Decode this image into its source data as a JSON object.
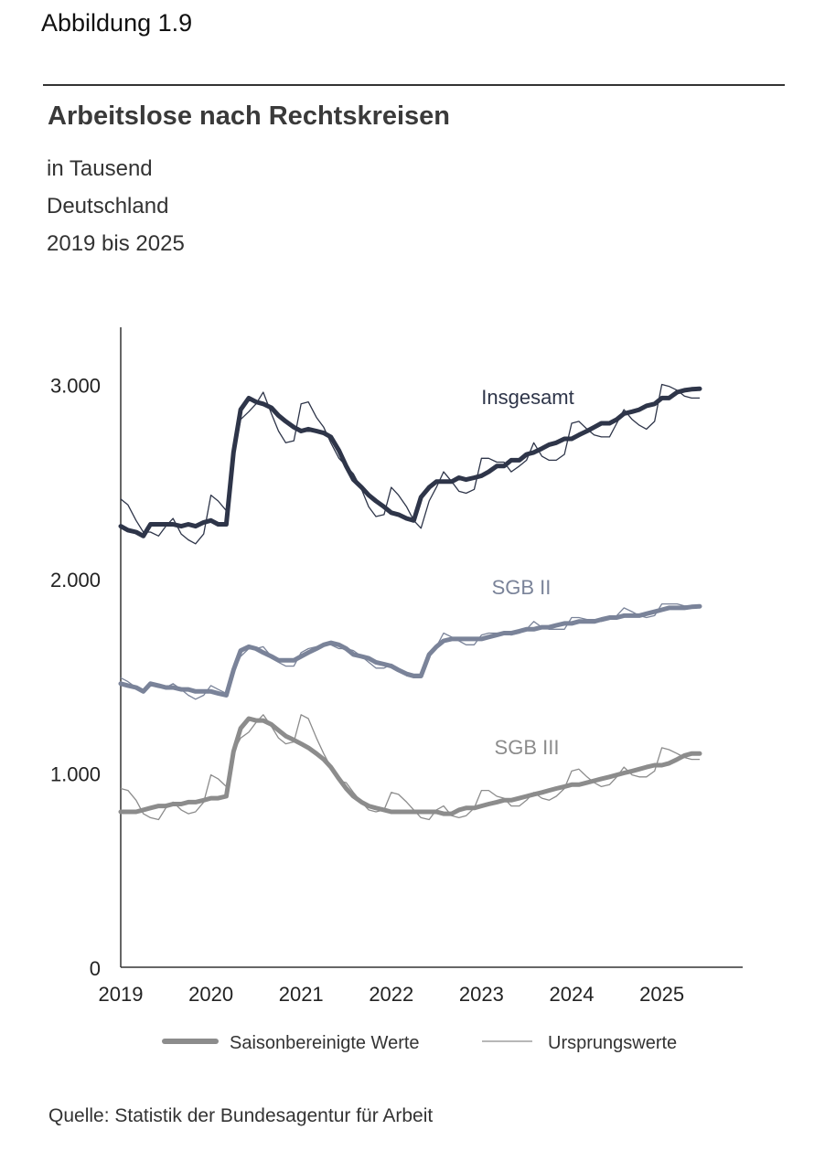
{
  "figure_label": "Abbildung 1.9",
  "source": "Quelle: Statistik der Bundesagentur für Arbeit",
  "colors": {
    "insgesamt": "#2e3549",
    "sgb2": "#7a8399",
    "sgb3": "#8c8c8c",
    "axis": "#333333"
  },
  "chart_data": {
    "type": "line",
    "title": "Arbeitslose nach Rechtskreisen",
    "subtitle": [
      "in Tausend",
      "Deutschland",
      "2019 bis 2025"
    ],
    "xlabel": "",
    "ylabel": "",
    "xlim": [
      2019.0,
      2025.85
    ],
    "ylim": [
      0,
      3000
    ],
    "x_ticks": [
      "2019",
      "2020",
      "2021",
      "2022",
      "2023",
      "2024",
      "2025"
    ],
    "y_ticks": [
      "0",
      "1.000",
      "2.000",
      "3.000"
    ],
    "y_tick_values": [
      0,
      1000,
      2000,
      3000
    ],
    "grid": false,
    "legend": {
      "placement": "bottom",
      "entries": [
        "Saisonbereinigte Werte",
        "Ursprungswerte"
      ]
    },
    "series": [
      {
        "name": "Insgesamt",
        "seasonally_adjusted": {
          "x": [
            2019.0,
            2019.08,
            2019.17,
            2019.25,
            2019.33,
            2019.42,
            2019.5,
            2019.58,
            2019.67,
            2019.75,
            2019.83,
            2019.92,
            2020.0,
            2020.08,
            2020.17,
            2020.25,
            2020.33,
            2020.42,
            2020.5,
            2020.58,
            2020.67,
            2020.75,
            2020.83,
            2020.92,
            2021.0,
            2021.08,
            2021.17,
            2021.25,
            2021.33,
            2021.42,
            2021.5,
            2021.58,
            2021.67,
            2021.75,
            2021.83,
            2021.92,
            2022.0,
            2022.08,
            2022.17,
            2022.25,
            2022.33,
            2022.42,
            2022.5,
            2022.58,
            2022.67,
            2022.75,
            2022.83,
            2022.92,
            2023.0,
            2023.08,
            2023.17,
            2023.25,
            2023.33,
            2023.42,
            2023.5,
            2023.58,
            2023.67,
            2023.75,
            2023.83,
            2023.92,
            2024.0,
            2024.08,
            2024.17,
            2024.25,
            2024.33,
            2024.42,
            2024.5,
            2024.58,
            2024.67,
            2024.75,
            2024.83,
            2024.92,
            2025.0,
            2025.08,
            2025.17,
            2025.25,
            2025.33,
            2025.42
          ],
          "y": [
            2270,
            2250,
            2240,
            2220,
            2280,
            2280,
            2280,
            2280,
            2270,
            2280,
            2270,
            2290,
            2300,
            2280,
            2280,
            2650,
            2870,
            2930,
            2910,
            2900,
            2880,
            2840,
            2810,
            2780,
            2760,
            2770,
            2760,
            2750,
            2730,
            2660,
            2580,
            2510,
            2470,
            2430,
            2400,
            2370,
            2340,
            2330,
            2310,
            2300,
            2420,
            2470,
            2500,
            2500,
            2500,
            2520,
            2510,
            2520,
            2530,
            2550,
            2580,
            2580,
            2610,
            2610,
            2640,
            2650,
            2670,
            2690,
            2700,
            2720,
            2720,
            2740,
            2760,
            2780,
            2800,
            2800,
            2820,
            2850,
            2860,
            2870,
            2890,
            2900,
            2930,
            2930,
            2960,
            2970,
            2975,
            2978
          ]
        },
        "original": {
          "x": [
            2019.0,
            2019.08,
            2019.17,
            2019.25,
            2019.33,
            2019.42,
            2019.5,
            2019.58,
            2019.67,
            2019.75,
            2019.83,
            2019.92,
            2020.0,
            2020.08,
            2020.17,
            2020.25,
            2020.33,
            2020.42,
            2020.5,
            2020.58,
            2020.67,
            2020.75,
            2020.83,
            2020.92,
            2021.0,
            2021.08,
            2021.17,
            2021.25,
            2021.33,
            2021.42,
            2021.5,
            2021.58,
            2021.67,
            2021.75,
            2021.83,
            2021.92,
            2022.0,
            2022.08,
            2022.17,
            2022.25,
            2022.33,
            2022.42,
            2022.5,
            2022.58,
            2022.67,
            2022.75,
            2022.83,
            2022.92,
            2023.0,
            2023.08,
            2023.17,
            2023.25,
            2023.33,
            2023.42,
            2023.5,
            2023.58,
            2023.67,
            2023.75,
            2023.83,
            2023.92,
            2024.0,
            2024.08,
            2024.17,
            2024.25,
            2024.33,
            2024.42,
            2024.5,
            2024.58,
            2024.67,
            2024.75,
            2024.83,
            2024.92,
            2025.0,
            2025.08,
            2025.17,
            2025.25,
            2025.33,
            2025.42
          ],
          "y": [
            2410,
            2380,
            2300,
            2240,
            2240,
            2220,
            2270,
            2310,
            2230,
            2200,
            2180,
            2230,
            2430,
            2400,
            2350,
            2620,
            2820,
            2860,
            2900,
            2960,
            2850,
            2760,
            2700,
            2710,
            2900,
            2910,
            2830,
            2780,
            2700,
            2620,
            2580,
            2540,
            2460,
            2370,
            2320,
            2330,
            2470,
            2430,
            2370,
            2300,
            2260,
            2400,
            2470,
            2550,
            2500,
            2450,
            2440,
            2460,
            2620,
            2620,
            2600,
            2600,
            2550,
            2580,
            2610,
            2700,
            2630,
            2610,
            2610,
            2640,
            2800,
            2810,
            2770,
            2740,
            2730,
            2730,
            2800,
            2870,
            2820,
            2790,
            2770,
            2810,
            3000,
            2990,
            2970,
            2940,
            2930,
            2930
          ]
        }
      },
      {
        "name": "SGB II",
        "seasonally_adjusted": {
          "x": [
            2019.0,
            2019.08,
            2019.17,
            2019.25,
            2019.33,
            2019.42,
            2019.5,
            2019.58,
            2019.67,
            2019.75,
            2019.83,
            2019.92,
            2020.0,
            2020.08,
            2020.17,
            2020.25,
            2020.33,
            2020.42,
            2020.5,
            2020.58,
            2020.67,
            2020.75,
            2020.83,
            2020.92,
            2021.0,
            2021.08,
            2021.17,
            2021.25,
            2021.33,
            2021.42,
            2021.5,
            2021.58,
            2021.67,
            2021.75,
            2021.83,
            2021.92,
            2022.0,
            2022.08,
            2022.17,
            2022.25,
            2022.33,
            2022.42,
            2022.5,
            2022.58,
            2022.67,
            2022.75,
            2022.83,
            2022.92,
            2023.0,
            2023.08,
            2023.17,
            2023.25,
            2023.33,
            2023.42,
            2023.5,
            2023.58,
            2023.67,
            2023.75,
            2023.83,
            2023.92,
            2024.0,
            2024.08,
            2024.17,
            2024.25,
            2024.33,
            2024.42,
            2024.5,
            2024.58,
            2024.67,
            2024.75,
            2024.83,
            2024.92,
            2025.0,
            2025.08,
            2025.17,
            2025.25,
            2025.33,
            2025.42
          ],
          "y": [
            1460,
            1450,
            1440,
            1420,
            1460,
            1450,
            1440,
            1440,
            1430,
            1430,
            1420,
            1420,
            1420,
            1410,
            1400,
            1530,
            1630,
            1650,
            1640,
            1620,
            1600,
            1580,
            1580,
            1580,
            1600,
            1620,
            1640,
            1660,
            1670,
            1660,
            1640,
            1610,
            1600,
            1590,
            1570,
            1560,
            1550,
            1530,
            1510,
            1500,
            1500,
            1610,
            1650,
            1680,
            1690,
            1690,
            1690,
            1690,
            1690,
            1700,
            1710,
            1720,
            1720,
            1730,
            1740,
            1740,
            1750,
            1750,
            1760,
            1770,
            1770,
            1780,
            1780,
            1780,
            1790,
            1800,
            1800,
            1810,
            1810,
            1810,
            1820,
            1830,
            1840,
            1850,
            1850,
            1850,
            1855,
            1858
          ]
        },
        "original": {
          "x": [
            2019.0,
            2019.08,
            2019.17,
            2019.25,
            2019.33,
            2019.42,
            2019.5,
            2019.58,
            2019.67,
            2019.75,
            2019.83,
            2019.92,
            2020.0,
            2020.08,
            2020.17,
            2020.25,
            2020.33,
            2020.42,
            2020.5,
            2020.58,
            2020.67,
            2020.75,
            2020.83,
            2020.92,
            2021.0,
            2021.08,
            2021.17,
            2021.25,
            2021.33,
            2021.42,
            2021.5,
            2021.58,
            2021.67,
            2021.75,
            2021.83,
            2021.92,
            2022.0,
            2022.08,
            2022.17,
            2022.25,
            2022.33,
            2022.42,
            2022.5,
            2022.58,
            2022.67,
            2022.75,
            2022.83,
            2022.92,
            2023.0,
            2023.08,
            2023.17,
            2023.25,
            2023.33,
            2023.42,
            2023.5,
            2023.58,
            2023.67,
            2023.75,
            2023.83,
            2023.92,
            2024.0,
            2024.08,
            2024.17,
            2024.25,
            2024.33,
            2024.42,
            2024.5,
            2024.58,
            2024.67,
            2024.75,
            2024.83,
            2024.92,
            2025.0,
            2025.08,
            2025.17,
            2025.25,
            2025.33,
            2025.42
          ],
          "y": [
            1490,
            1470,
            1440,
            1430,
            1450,
            1440,
            1440,
            1460,
            1430,
            1400,
            1380,
            1400,
            1450,
            1430,
            1410,
            1520,
            1600,
            1640,
            1640,
            1650,
            1600,
            1570,
            1550,
            1550,
            1620,
            1640,
            1650,
            1660,
            1660,
            1640,
            1640,
            1630,
            1600,
            1570,
            1540,
            1540,
            1560,
            1540,
            1500,
            1490,
            1490,
            1600,
            1650,
            1720,
            1700,
            1680,
            1660,
            1660,
            1710,
            1720,
            1720,
            1720,
            1710,
            1720,
            1740,
            1780,
            1750,
            1740,
            1740,
            1740,
            1800,
            1800,
            1790,
            1790,
            1780,
            1790,
            1810,
            1850,
            1830,
            1810,
            1800,
            1810,
            1870,
            1870,
            1870,
            1860,
            1860,
            1860
          ]
        }
      },
      {
        "name": "SGB III",
        "seasonally_adjusted": {
          "x": [
            2019.0,
            2019.08,
            2019.17,
            2019.25,
            2019.33,
            2019.42,
            2019.5,
            2019.58,
            2019.67,
            2019.75,
            2019.83,
            2019.92,
            2020.0,
            2020.08,
            2020.17,
            2020.25,
            2020.33,
            2020.42,
            2020.5,
            2020.58,
            2020.67,
            2020.75,
            2020.83,
            2020.92,
            2021.0,
            2021.08,
            2021.17,
            2021.25,
            2021.33,
            2021.42,
            2021.5,
            2021.58,
            2021.67,
            2021.75,
            2021.83,
            2021.92,
            2022.0,
            2022.08,
            2022.17,
            2022.25,
            2022.33,
            2022.42,
            2022.5,
            2022.58,
            2022.67,
            2022.75,
            2022.83,
            2022.92,
            2023.0,
            2023.08,
            2023.17,
            2023.25,
            2023.33,
            2023.42,
            2023.5,
            2023.58,
            2023.67,
            2023.75,
            2023.83,
            2023.92,
            2024.0,
            2024.08,
            2024.17,
            2024.25,
            2024.33,
            2024.42,
            2024.5,
            2024.58,
            2024.67,
            2024.75,
            2024.83,
            2024.92,
            2025.0,
            2025.08,
            2025.17,
            2025.25,
            2025.33,
            2025.42
          ],
          "y": [
            800,
            800,
            800,
            810,
            820,
            830,
            830,
            840,
            840,
            850,
            850,
            860,
            870,
            870,
            880,
            1110,
            1230,
            1280,
            1270,
            1270,
            1250,
            1220,
            1190,
            1170,
            1150,
            1130,
            1100,
            1070,
            1030,
            970,
            920,
            880,
            850,
            830,
            820,
            810,
            800,
            800,
            800,
            800,
            800,
            800,
            800,
            790,
            790,
            810,
            820,
            820,
            830,
            840,
            850,
            860,
            860,
            870,
            880,
            890,
            900,
            910,
            920,
            930,
            940,
            940,
            950,
            960,
            970,
            980,
            990,
            1000,
            1010,
            1020,
            1030,
            1040,
            1040,
            1050,
            1070,
            1090,
            1100,
            1100
          ]
        },
        "original": {
          "x": [
            2019.0,
            2019.08,
            2019.17,
            2019.25,
            2019.33,
            2019.42,
            2019.5,
            2019.58,
            2019.67,
            2019.75,
            2019.83,
            2019.92,
            2020.0,
            2020.08,
            2020.17,
            2020.25,
            2020.33,
            2020.42,
            2020.5,
            2020.58,
            2020.67,
            2020.75,
            2020.83,
            2020.92,
            2021.0,
            2021.08,
            2021.17,
            2021.25,
            2021.33,
            2021.42,
            2021.5,
            2021.58,
            2021.67,
            2021.75,
            2021.83,
            2021.92,
            2022.0,
            2022.08,
            2022.17,
            2022.25,
            2022.33,
            2022.42,
            2022.5,
            2022.58,
            2022.67,
            2022.75,
            2022.83,
            2022.92,
            2023.0,
            2023.08,
            2023.17,
            2023.25,
            2023.33,
            2023.42,
            2023.5,
            2023.58,
            2023.67,
            2023.75,
            2023.83,
            2023.92,
            2024.0,
            2024.08,
            2024.17,
            2024.25,
            2024.33,
            2024.42,
            2024.5,
            2024.58,
            2024.67,
            2024.75,
            2024.83,
            2024.92,
            2025.0,
            2025.08,
            2025.17,
            2025.25,
            2025.33,
            2025.42
          ],
          "y": [
            920,
            910,
            860,
            790,
            770,
            760,
            820,
            850,
            810,
            790,
            800,
            850,
            990,
            970,
            930,
            1110,
            1180,
            1210,
            1260,
            1300,
            1240,
            1180,
            1150,
            1160,
            1300,
            1280,
            1180,
            1100,
            1030,
            960,
            950,
            900,
            850,
            810,
            800,
            810,
            900,
            890,
            850,
            810,
            770,
            760,
            810,
            830,
            780,
            770,
            780,
            820,
            910,
            910,
            880,
            870,
            830,
            830,
            860,
            900,
            870,
            860,
            880,
            920,
            1010,
            1020,
            980,
            950,
            930,
            940,
            980,
            1030,
            990,
            980,
            980,
            1010,
            1130,
            1120,
            1100,
            1080,
            1070,
            1070
          ]
        }
      }
    ]
  }
}
